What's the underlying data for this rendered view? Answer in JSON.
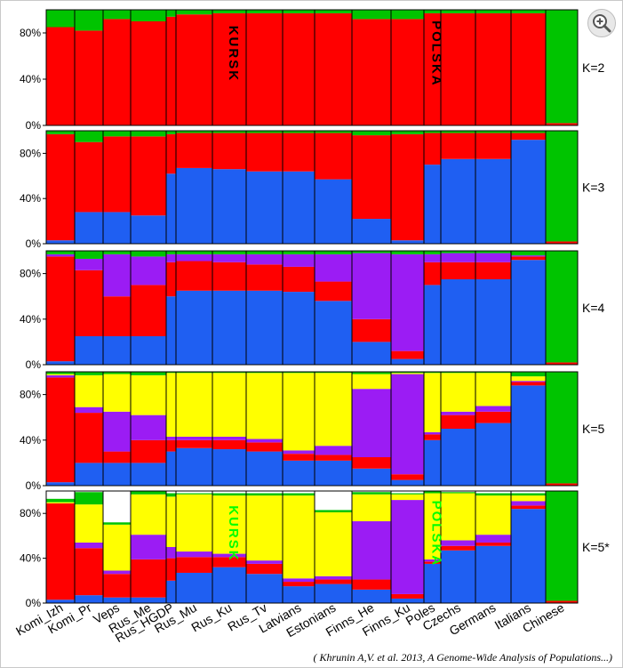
{
  "chart_data": {
    "type": "bar",
    "stacked": true,
    "categories": [
      "Komi_Izh",
      "Komi_Pr",
      "Veps",
      "Rus_Me",
      "Rus_HGDP",
      "Rus_Mu",
      "Rus_Ku",
      "Rus_Tv",
      "Latvians",
      "Estonians",
      "Finns_He",
      "Finns_Ku",
      "Poles",
      "Czechs",
      "Germans",
      "Italians",
      "Chinese"
    ],
    "component_colors": {
      "blue": "#1f5ff2",
      "red": "#ff0000",
      "purple": "#9b1cf4",
      "yellow": "#ffff00",
      "green": "#00c400"
    },
    "yaxis": {
      "ylim": [
        0,
        100
      ],
      "tick_labels": [
        "0%",
        "40%",
        "80%"
      ],
      "tick_values": [
        0,
        40,
        80
      ]
    },
    "panels": [
      {
        "label": "K=2",
        "annotations": [
          {
            "text": "KURSK",
            "x_category": "Rus_Ku",
            "color": "#000000"
          },
          {
            "text": "POLSKA",
            "x_category": "Poles",
            "color": "#000000"
          }
        ],
        "series": [
          {
            "values": [
              0,
              0,
              0,
              0,
              0,
              0,
              0,
              0,
              0,
              0,
              0,
              0,
              0,
              0,
              0,
              0,
              0
            ]
          },
          {
            "values": [
              85,
              82,
              92,
              90,
              94,
              96,
              97,
              97,
              97,
              97,
              92,
              92,
              97,
              97,
              97,
              97,
              2
            ]
          },
          {
            "values": [
              0,
              0,
              0,
              0,
              0,
              0,
              0,
              0,
              0,
              0,
              0,
              0,
              0,
              0,
              0,
              0,
              0
            ]
          },
          {
            "values": [
              0,
              0,
              0,
              0,
              0,
              0,
              0,
              0,
              0,
              0,
              0,
              0,
              0,
              0,
              0,
              0,
              0
            ]
          },
          {
            "values": [
              15,
              18,
              8,
              10,
              6,
              4,
              3,
              3,
              3,
              3,
              8,
              8,
              3,
              3,
              3,
              3,
              98
            ]
          }
        ]
      },
      {
        "label": "K=3",
        "series": [
          {
            "values": [
              3,
              28,
              28,
              25,
              62,
              67,
              66,
              64,
              64,
              57,
              22,
              3,
              70,
              75,
              75,
              92,
              0
            ]
          },
          {
            "values": [
              94,
              62,
              67,
              70,
              35,
              31,
              32,
              34,
              34,
              41,
              74,
              94,
              28,
              23,
              23,
              6,
              2
            ]
          },
          {
            "values": [
              0,
              0,
              0,
              0,
              0,
              0,
              0,
              0,
              0,
              0,
              0,
              0,
              0,
              0,
              0,
              0,
              0
            ]
          },
          {
            "values": [
              0,
              0,
              0,
              0,
              0,
              0,
              0,
              0,
              0,
              0,
              0,
              0,
              0,
              0,
              0,
              0,
              0
            ]
          },
          {
            "values": [
              3,
              10,
              5,
              5,
              3,
              2,
              2,
              2,
              2,
              2,
              4,
              3,
              2,
              2,
              2,
              2,
              98
            ]
          }
        ]
      },
      {
        "label": "K=4",
        "series": [
          {
            "values": [
              3,
              25,
              25,
              25,
              60,
              65,
              65,
              65,
              64,
              56,
              20,
              5,
              70,
              75,
              75,
              92,
              0
            ]
          },
          {
            "values": [
              92,
              58,
              35,
              45,
              30,
              26,
              25,
              23,
              22,
              17,
              20,
              7,
              20,
              15,
              15,
              3,
              2
            ]
          },
          {
            "values": [
              2,
              10,
              37,
              25,
              7,
              6,
              7,
              9,
              11,
              24,
              58,
              85,
              7,
              8,
              8,
              1,
              0
            ]
          },
          {
            "values": [
              0,
              0,
              0,
              0,
              0,
              0,
              0,
              0,
              0,
              0,
              0,
              0,
              0,
              0,
              0,
              0,
              0
            ]
          },
          {
            "values": [
              3,
              7,
              3,
              5,
              3,
              3,
              3,
              3,
              3,
              3,
              2,
              3,
              3,
              2,
              2,
              4,
              98
            ]
          }
        ]
      },
      {
        "label": "K=5",
        "series": [
          {
            "values": [
              3,
              20,
              20,
              20,
              30,
              33,
              32,
              30,
              22,
              22,
              15,
              5,
              40,
              50,
              55,
              88,
              0
            ]
          },
          {
            "values": [
              92,
              44,
              10,
              20,
              10,
              7,
              8,
              8,
              6,
              5,
              10,
              5,
              5,
              12,
              10,
              3,
              2
            ]
          },
          {
            "values": [
              2,
              5,
              35,
              22,
              3,
              3,
              3,
              3,
              3,
              8,
              60,
              88,
              2,
              3,
              5,
              1,
              0
            ]
          },
          {
            "values": [
              1,
              28,
              33,
              35,
              56,
              56,
              56,
              58,
              68,
              64,
              13,
              1,
              52,
              34,
              29,
              4,
              0
            ]
          },
          {
            "values": [
              2,
              3,
              2,
              3,
              1,
              1,
              1,
              1,
              1,
              1,
              2,
              1,
              1,
              1,
              1,
              4,
              98
            ]
          }
        ]
      },
      {
        "label": "K=5*",
        "annotations": [
          {
            "text": "KURSK",
            "x_category": "Rus_Ku",
            "color": "#00ff00"
          },
          {
            "text": "POLSKA",
            "x_category": "Poles",
            "color": "#00ff00"
          }
        ],
        "series": [
          {
            "values": [
              3,
              7,
              5,
              5,
              20,
              27,
              32,
              26,
              15,
              17,
              12,
              4,
              35,
              47,
              51,
              84,
              0
            ]
          },
          {
            "values": [
              86,
              42,
              21,
              34,
              20,
              14,
              9,
              9,
              4,
              4,
              9,
              4,
              2,
              4,
              3,
              3,
              2
            ]
          },
          {
            "values": [
              0,
              5,
              3,
              22,
              10,
              5,
              3,
              3,
              3,
              3,
              52,
              84,
              2,
              5,
              7,
              4,
              0
            ]
          },
          {
            "values": [
              1,
              34,
              41,
              36,
              45,
              51,
              52,
              58,
              74,
              57,
              24,
              5,
              59,
              42,
              35,
              5,
              0
            ]
          },
          {
            "values": [
              3,
              11,
              2,
              3,
              3,
              1,
              2,
              2,
              2,
              2,
              2,
              1,
              2,
              1,
              2,
              2,
              98
            ]
          }
        ]
      }
    ]
  },
  "caption": "( Khrunin A,V. et al. 2013, A Genome-Wide Analysis of Populations...)",
  "zoom_icon": "zoom-in-icon"
}
